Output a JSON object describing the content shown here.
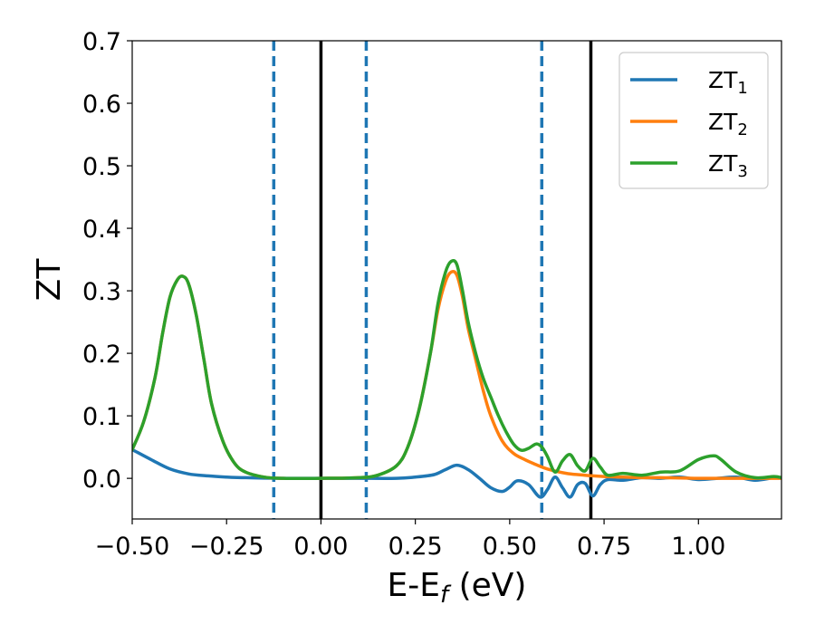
{
  "chart_data": {
    "type": "line",
    "xlabel": "E-E",
    "xlabel_sub": "f",
    "xlabel_unit": " (eV)",
    "ylabel": "ZT",
    "xlim": [
      -0.5,
      1.22
    ],
    "ylim": [
      -0.065,
      0.7
    ],
    "grid": false,
    "legend_position": "top-right",
    "x_ticks": [
      -0.5,
      -0.25,
      0.0,
      0.25,
      0.5,
      0.75,
      1.0
    ],
    "x_tick_labels": [
      "−0.50",
      "−0.25",
      "0.00",
      "0.25",
      "0.50",
      "0.75",
      "1.00"
    ],
    "y_ticks": [
      0.0,
      0.1,
      0.2,
      0.3,
      0.4,
      0.5,
      0.6,
      0.7
    ],
    "y_tick_labels": [
      "0.0",
      "0.1",
      "0.2",
      "0.3",
      "0.4",
      "0.5",
      "0.6",
      "0.7"
    ],
    "vertical_lines": [
      {
        "x": -0.125,
        "style": "dashed",
        "color": "#1f77b4"
      },
      {
        "x": 0.0,
        "style": "solid",
        "color": "#000000"
      },
      {
        "x": 0.12,
        "style": "dashed",
        "color": "#1f77b4"
      },
      {
        "x": 0.585,
        "style": "dashed",
        "color": "#1f77b4"
      },
      {
        "x": 0.715,
        "style": "solid",
        "color": "#000000"
      }
    ],
    "series": [
      {
        "name": "ZT",
        "name_sub": "1",
        "color": "#1f77b4",
        "x": [
          -0.5,
          -0.45,
          -0.4,
          -0.35,
          -0.3,
          -0.25,
          -0.2,
          -0.1,
          0.0,
          0.1,
          0.2,
          0.25,
          0.3,
          0.33,
          0.36,
          0.39,
          0.42,
          0.45,
          0.48,
          0.5,
          0.52,
          0.55,
          0.58,
          0.6,
          0.62,
          0.64,
          0.66,
          0.68,
          0.7,
          0.72,
          0.74,
          0.76,
          0.8,
          0.85,
          0.9,
          0.95,
          1.0,
          1.05,
          1.1,
          1.15,
          1.2,
          1.22
        ],
        "y": [
          0.046,
          0.03,
          0.015,
          0.007,
          0.004,
          0.002,
          0.001,
          0.0,
          0.0,
          0.0,
          0.0,
          0.002,
          0.006,
          0.014,
          0.021,
          0.014,
          0.0,
          -0.015,
          -0.021,
          -0.014,
          -0.004,
          -0.01,
          -0.03,
          -0.018,
          0.002,
          -0.015,
          -0.03,
          -0.01,
          -0.008,
          -0.028,
          -0.01,
          -0.002,
          -0.003,
          0.001,
          0.0,
          0.002,
          -0.002,
          0.0,
          0.002,
          -0.003,
          0.001,
          0.0
        ]
      },
      {
        "name": "ZT",
        "name_sub": "2",
        "color": "#ff7f0e",
        "x": [
          -0.5,
          -0.47,
          -0.44,
          -0.42,
          -0.4,
          -0.38,
          -0.365,
          -0.35,
          -0.33,
          -0.31,
          -0.29,
          -0.26,
          -0.23,
          -0.2,
          -0.15,
          -0.1,
          0.0,
          0.1,
          0.15,
          0.2,
          0.23,
          0.26,
          0.29,
          0.31,
          0.33,
          0.345,
          0.36,
          0.375,
          0.39,
          0.41,
          0.43,
          0.45,
          0.48,
          0.51,
          0.54,
          0.57,
          0.6,
          0.65,
          0.7,
          0.75,
          0.8,
          0.85,
          0.9,
          1.0,
          1.1,
          1.22
        ],
        "y": [
          0.046,
          0.09,
          0.16,
          0.23,
          0.29,
          0.318,
          0.323,
          0.31,
          0.26,
          0.19,
          0.12,
          0.06,
          0.025,
          0.01,
          0.002,
          0.0,
          0.0,
          0.001,
          0.005,
          0.02,
          0.05,
          0.11,
          0.2,
          0.27,
          0.315,
          0.33,
          0.325,
          0.29,
          0.24,
          0.19,
          0.14,
          0.1,
          0.06,
          0.04,
          0.03,
          0.022,
          0.015,
          0.008,
          0.005,
          0.003,
          0.002,
          0.001,
          0.001,
          0.0,
          0.0,
          0.0
        ]
      },
      {
        "name": "ZT",
        "name_sub": "3",
        "color": "#2ca02c",
        "x": [
          -0.5,
          -0.47,
          -0.44,
          -0.42,
          -0.4,
          -0.38,
          -0.365,
          -0.35,
          -0.33,
          -0.31,
          -0.29,
          -0.26,
          -0.23,
          -0.2,
          -0.15,
          -0.1,
          0.0,
          0.1,
          0.15,
          0.2,
          0.23,
          0.26,
          0.29,
          0.31,
          0.33,
          0.345,
          0.36,
          0.375,
          0.39,
          0.41,
          0.43,
          0.45,
          0.47,
          0.49,
          0.51,
          0.53,
          0.55,
          0.57,
          0.585,
          0.6,
          0.62,
          0.64,
          0.66,
          0.68,
          0.7,
          0.72,
          0.74,
          0.76,
          0.8,
          0.85,
          0.9,
          0.95,
          1.0,
          1.04,
          1.06,
          1.1,
          1.15,
          1.2,
          1.22
        ],
        "y": [
          0.046,
          0.09,
          0.16,
          0.23,
          0.29,
          0.318,
          0.323,
          0.31,
          0.26,
          0.19,
          0.12,
          0.06,
          0.025,
          0.01,
          0.002,
          0.0,
          0.0,
          0.001,
          0.005,
          0.02,
          0.05,
          0.11,
          0.2,
          0.28,
          0.33,
          0.347,
          0.342,
          0.3,
          0.25,
          0.2,
          0.16,
          0.13,
          0.1,
          0.075,
          0.055,
          0.045,
          0.048,
          0.055,
          0.05,
          0.035,
          0.01,
          0.028,
          0.038,
          0.02,
          0.012,
          0.032,
          0.018,
          0.005,
          0.008,
          0.005,
          0.01,
          0.012,
          0.03,
          0.036,
          0.03,
          0.01,
          0.001,
          0.003,
          0.001
        ]
      }
    ]
  }
}
